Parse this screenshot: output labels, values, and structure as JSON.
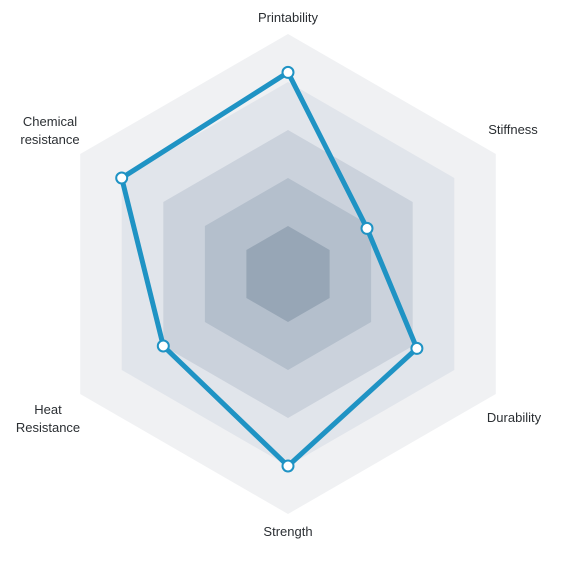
{
  "chart_data": {
    "type": "radar",
    "axes": [
      "Printability",
      "Stiffness",
      "Durability",
      "Strength",
      "Heat Resistance",
      "Chemical resistance"
    ],
    "axis_label_lines": [
      [
        "Printability"
      ],
      [
        "Stiffness"
      ],
      [
        "Durability"
      ],
      [
        "Strength"
      ],
      [
        "Heat",
        "Resistance"
      ],
      [
        "Chemical",
        "resistance"
      ]
    ],
    "levels": 5,
    "range": [
      0,
      5
    ],
    "values": [
      4.2,
      1.9,
      3.1,
      4.0,
      3.0,
      4.0
    ],
    "colors": {
      "line": "#1f93c4",
      "marker_fill": "#ffffff",
      "level_fills": [
        "#f0f1f3",
        "#e1e5eb",
        "#cbd2dc",
        "#b4bfcc",
        "#97a6b6"
      ]
    }
  }
}
